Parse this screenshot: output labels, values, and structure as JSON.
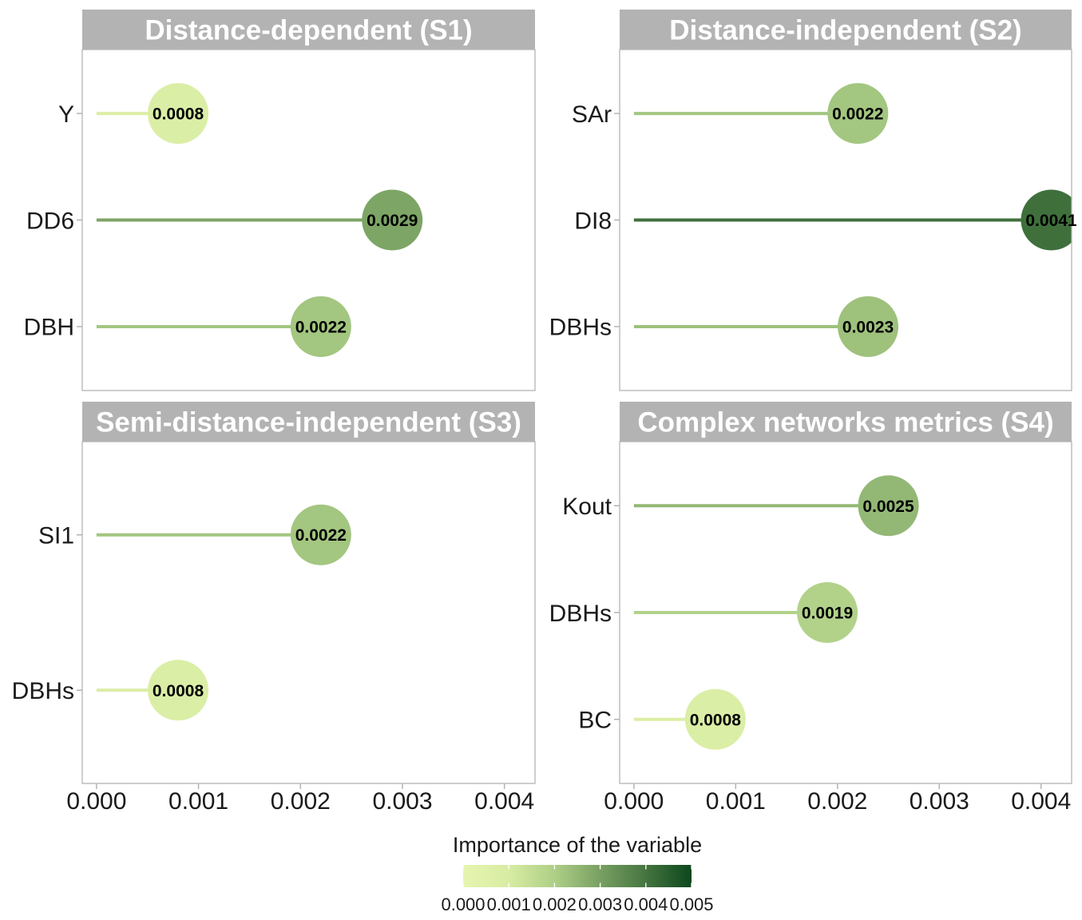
{
  "chart_data": {
    "type": "bar",
    "orientation": "horizontal",
    "grid": false,
    "xlim": [
      -0.00014,
      0.0043
    ],
    "x_ticks": [
      0,
      0.001,
      0.002,
      0.003,
      0.004
    ],
    "x_tick_labels": [
      "0.000",
      "0.001",
      "0.002",
      "0.003",
      "0.004"
    ],
    "facets": [
      {
        "title": "Distance-dependent (S1)",
        "categories": [
          "Y",
          "DD6",
          "DBH"
        ],
        "values": [
          0.0008,
          0.0029,
          0.0022
        ],
        "labels": [
          "0.0008",
          "0.0029",
          "0.0022"
        ]
      },
      {
        "title": "Distance-independent (S2)",
        "categories": [
          "SAr",
          "DI8",
          "DBHs"
        ],
        "values": [
          0.0022,
          0.0041,
          0.0023
        ],
        "labels": [
          "0.0022",
          "0.0041",
          "0.0023"
        ]
      },
      {
        "title": "Semi-distance-independent (S3)",
        "categories": [
          "SI1",
          "DBHs"
        ],
        "values": [
          0.0022,
          0.0008
        ],
        "labels": [
          "0.0022",
          "0.0008"
        ]
      },
      {
        "title": "Complex networks metrics (S4)",
        "categories": [
          "Kout",
          "DBHs",
          "BC"
        ],
        "values": [
          0.0025,
          0.0019,
          0.0008
        ],
        "labels": [
          "0.0025",
          "0.0019",
          "0.0008"
        ]
      }
    ],
    "legend": {
      "title": "Importance of the variable",
      "placement": "bottom",
      "range": [
        0,
        0.005
      ],
      "ticks": [
        0,
        0.001,
        0.002,
        0.003,
        0.004,
        0.005
      ],
      "tick_labels": [
        "0.000",
        "0.001",
        "0.002",
        "0.003",
        "0.004",
        "0.005"
      ],
      "colors": [
        "#e6f5b0",
        "#d8eca3",
        "#aecf87",
        "#78a062",
        "#457540",
        "#0c471c"
      ]
    }
  }
}
